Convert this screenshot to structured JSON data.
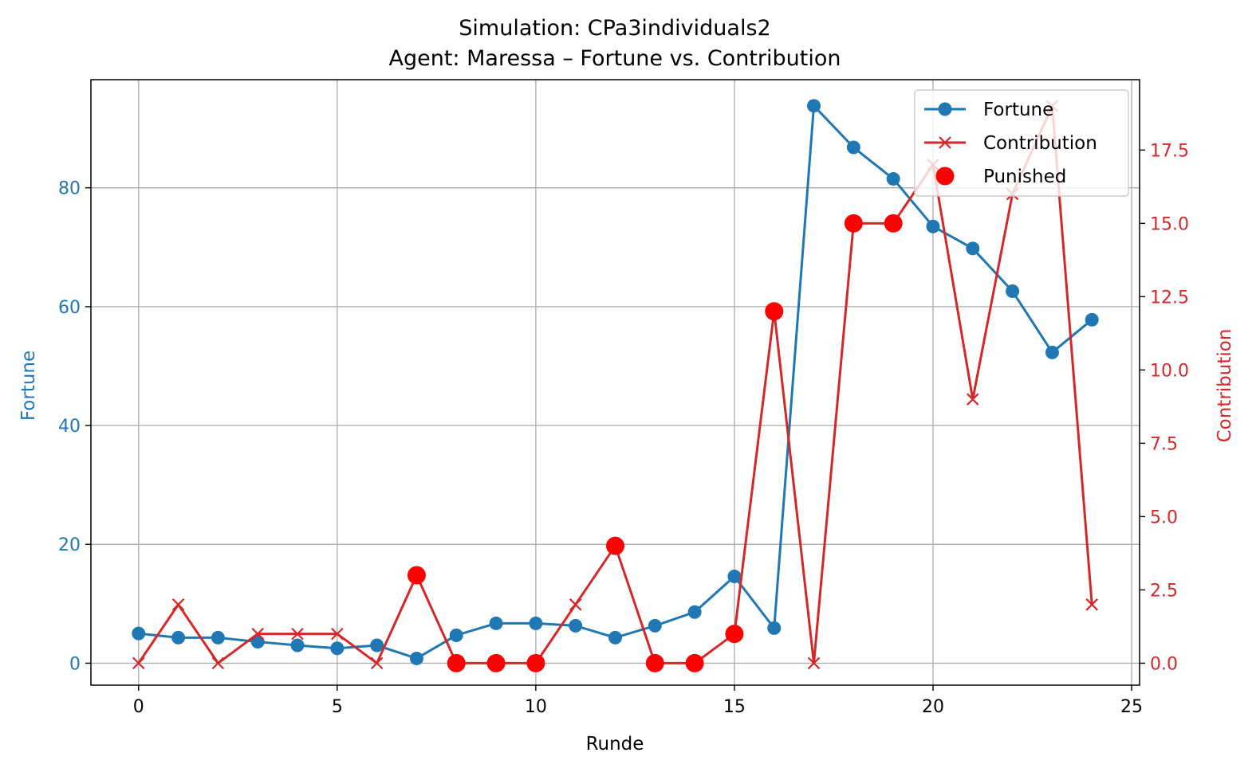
{
  "chart_data": {
    "type": "line",
    "title": "Simulation: CPa3individuals2",
    "subtitle": "Agent: Maressa – Fortune vs. Contribution",
    "xlabel": "Runde",
    "ylabel_left": "Fortune",
    "ylabel_right": "Contribution",
    "x": [
      0,
      1,
      2,
      3,
      4,
      5,
      6,
      7,
      8,
      9,
      10,
      11,
      12,
      13,
      14,
      15,
      16,
      17,
      18,
      19,
      20,
      21,
      22,
      23,
      24
    ],
    "xlim": [
      -1.2,
      25.2
    ],
    "xticks": [
      0,
      5,
      10,
      15,
      20,
      25
    ],
    "ylim_left": [
      -3.7,
      98.2
    ],
    "yticks_left": [
      0,
      20,
      40,
      60,
      80
    ],
    "ylim_right": [
      -0.75,
      19.9
    ],
    "yticks_right": [
      "0.0",
      "2.5",
      "5.0",
      "7.5",
      "10.0",
      "12.5",
      "15.0",
      "17.5"
    ],
    "grid": true,
    "legend_position": "top-right",
    "colors": {
      "fortune": "#1f77b4",
      "contribution": "#d62728",
      "punished": "#ff0000",
      "left_axis": "#1f77b4",
      "right_axis": "#d62728"
    },
    "series": [
      {
        "name": "Fortune",
        "axis": "left",
        "marker": "circle",
        "values": [
          5.0,
          4.3,
          4.3,
          3.6,
          3.0,
          2.5,
          3.0,
          0.8,
          4.7,
          6.7,
          6.7,
          6.3,
          4.3,
          6.3,
          8.6,
          14.6,
          5.9,
          93.8,
          86.8,
          81.5,
          73.5,
          69.8,
          62.6,
          52.3,
          57.8
        ]
      },
      {
        "name": "Contribution",
        "axis": "right",
        "marker": "x",
        "values": [
          0,
          2,
          0,
          1,
          1,
          1,
          0,
          3,
          0,
          0,
          0,
          2,
          4,
          0,
          0,
          1,
          12,
          0,
          15,
          15,
          17,
          9,
          16,
          19,
          2
        ]
      },
      {
        "name": "Punished",
        "axis": "right",
        "marker": "big-circle",
        "points": [
          [
            7,
            3
          ],
          [
            8,
            0
          ],
          [
            9,
            0
          ],
          [
            10,
            0
          ],
          [
            12,
            4
          ],
          [
            13,
            0
          ],
          [
            14,
            0
          ],
          [
            15,
            1
          ],
          [
            16,
            12
          ],
          [
            18,
            15
          ],
          [
            19,
            15
          ]
        ]
      }
    ]
  }
}
